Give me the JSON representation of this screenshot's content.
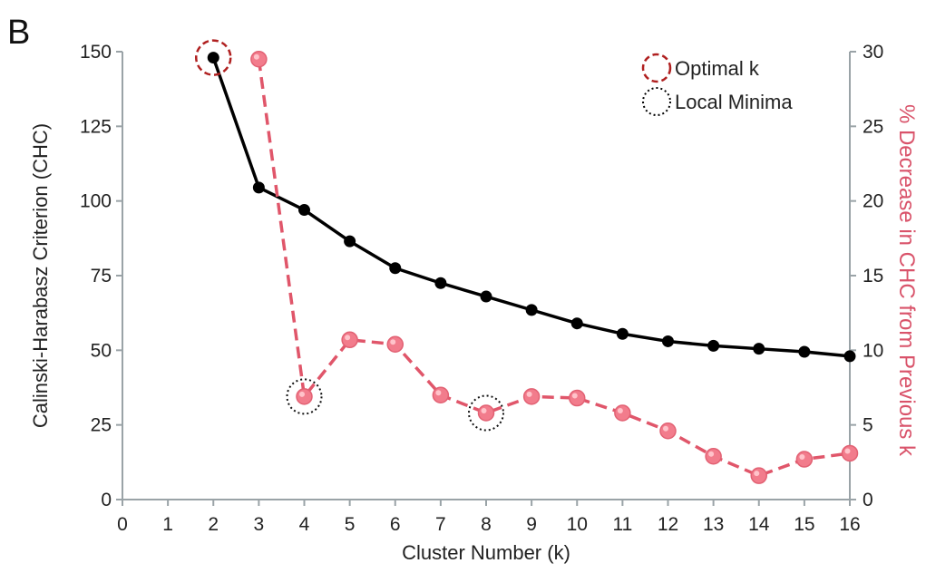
{
  "panel_label": "B",
  "chart_data": {
    "type": "line",
    "x_axis": {
      "label": "Cluster Number (k)",
      "range": [
        0,
        16
      ],
      "ticks": [
        0,
        1,
        2,
        3,
        4,
        5,
        6,
        7,
        8,
        9,
        10,
        11,
        12,
        13,
        14,
        15,
        16
      ]
    },
    "y_axis_left": {
      "label": "Calinski-Harabasz Criterion (CHC)",
      "range": [
        0,
        150
      ],
      "ticks": [
        0,
        25,
        50,
        75,
        100,
        125,
        150
      ]
    },
    "y_axis_right": {
      "label": "% Decrease in CHC from Previous k",
      "range": [
        0,
        30
      ],
      "ticks": [
        0,
        5,
        10,
        15,
        20,
        25,
        30
      ]
    },
    "grid": false,
    "legend_position": "top-right",
    "legend": [
      {
        "label": "Optimal k",
        "marker": "dashed-circle",
        "color": "#b02020"
      },
      {
        "label": "Local Minima",
        "marker": "dotted-circle",
        "color": "#000000"
      }
    ],
    "series": [
      {
        "axis": "left",
        "color": "#000000",
        "line_style": "solid",
        "x": [
          2,
          3,
          4,
          5,
          6,
          7,
          8,
          9,
          10,
          11,
          12,
          13,
          14,
          15,
          16
        ],
        "values": [
          148,
          104.5,
          97,
          86.5,
          77.5,
          72.5,
          68,
          63.5,
          59,
          55.5,
          53,
          51.5,
          50.5,
          49.5,
          48
        ]
      },
      {
        "axis": "right",
        "color": "#e0566a",
        "line_style": "dashed",
        "x": [
          3,
          4,
          5,
          6,
          7,
          8,
          9,
          10,
          11,
          12,
          13,
          14,
          15,
          16
        ],
        "values": [
          29.5,
          6.9,
          10.7,
          10.4,
          7.0,
          5.8,
          6.9,
          6.8,
          5.8,
          4.6,
          2.9,
          1.6,
          2.7,
          3.1
        ]
      }
    ],
    "annotations": [
      {
        "type": "optimal",
        "series": 0,
        "x": 2
      },
      {
        "type": "local_minimum",
        "series": 1,
        "x": 4
      },
      {
        "type": "local_minimum",
        "series": 1,
        "x": 8
      }
    ]
  }
}
